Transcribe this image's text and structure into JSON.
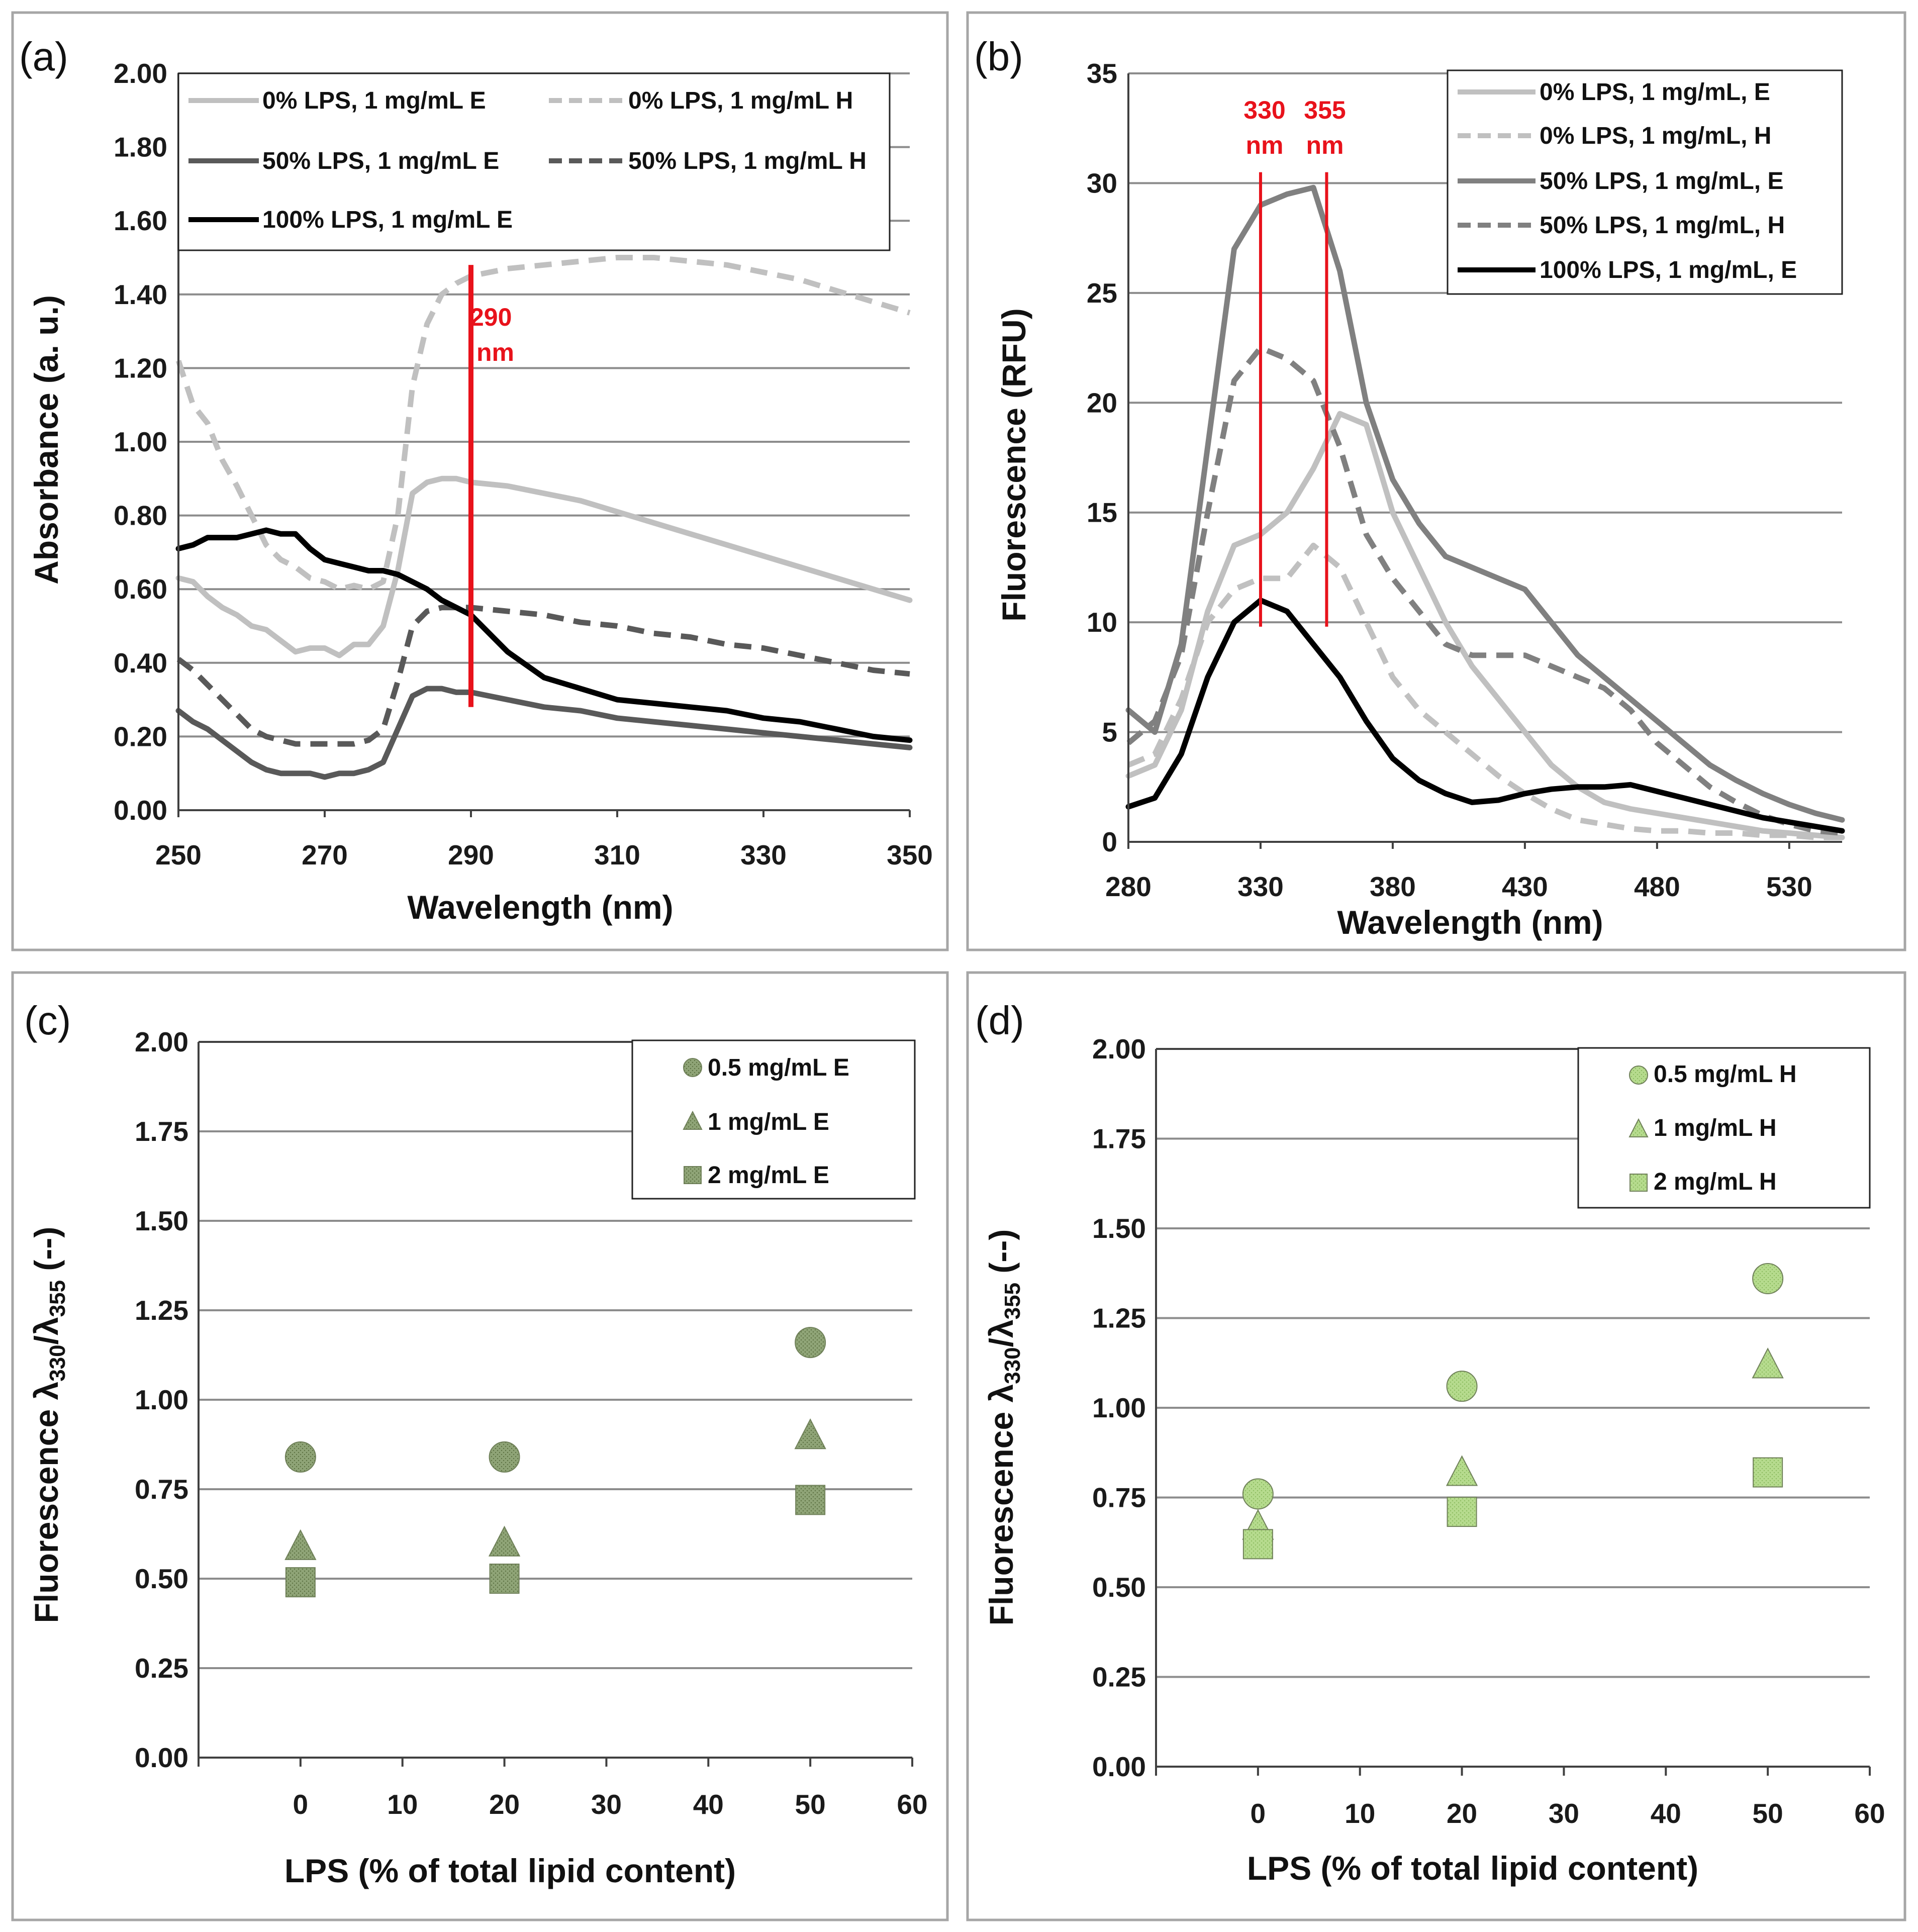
{
  "chart_data": [
    {
      "id": "a",
      "panel_label": "(a)",
      "type": "line",
      "xlabel": "Wavelength (nm)",
      "ylabel": "Absorbance (a. u.)",
      "xlim": [
        250,
        350
      ],
      "ylim": [
        0,
        2
      ],
      "xticks": [
        "250",
        "270",
        "290",
        "310",
        "330",
        "350"
      ],
      "yticks": [
        "0.00",
        "0.20",
        "0.40",
        "0.60",
        "0.80",
        "1.00",
        "1.20",
        "1.40",
        "1.60",
        "1.80",
        "2.00"
      ],
      "vlines": [
        {
          "x": 290,
          "y0": 0.28,
          "y1": 1.48
        }
      ],
      "annotations": [
        {
          "line1": "290",
          "line2": "nm"
        }
      ],
      "series": [
        {
          "name": "0% LPS, 1 mg/mL E",
          "color": "#c0c0c0",
          "dash": false,
          "x": [
            250,
            252,
            254,
            256,
            258,
            260,
            262,
            264,
            266,
            268,
            270,
            272,
            274,
            276,
            278,
            280,
            282,
            284,
            286,
            288,
            290,
            295,
            300,
            305,
            310,
            315,
            320,
            325,
            330,
            335,
            340,
            345,
            350
          ],
          "y": [
            0.63,
            0.62,
            0.58,
            0.55,
            0.53,
            0.5,
            0.49,
            0.46,
            0.43,
            0.44,
            0.44,
            0.42,
            0.45,
            0.45,
            0.5,
            0.65,
            0.86,
            0.89,
            0.9,
            0.9,
            0.89,
            0.88,
            0.86,
            0.84,
            0.81,
            0.78,
            0.75,
            0.72,
            0.69,
            0.66,
            0.63,
            0.6,
            0.57
          ]
        },
        {
          "name": "0% LPS, 1 mg/mL  H",
          "color": "#c0c0c0",
          "dash": true,
          "x": [
            250,
            252,
            254,
            256,
            258,
            260,
            262,
            264,
            266,
            268,
            270,
            272,
            274,
            276,
            278,
            280,
            282,
            284,
            286,
            288,
            290,
            295,
            300,
            305,
            310,
            315,
            320,
            325,
            330,
            335,
            340,
            345,
            350
          ],
          "y": [
            1.22,
            1.1,
            1.05,
            0.95,
            0.88,
            0.8,
            0.72,
            0.68,
            0.66,
            0.63,
            0.62,
            0.6,
            0.61,
            0.6,
            0.62,
            0.8,
            1.15,
            1.32,
            1.4,
            1.43,
            1.45,
            1.47,
            1.48,
            1.49,
            1.5,
            1.5,
            1.49,
            1.48,
            1.46,
            1.44,
            1.41,
            1.38,
            1.35
          ]
        },
        {
          "name": "50% LPS, 1 mg/mL E",
          "color": "#595959",
          "dash": false,
          "x": [
            250,
            252,
            254,
            256,
            258,
            260,
            262,
            264,
            266,
            268,
            270,
            272,
            274,
            276,
            278,
            280,
            282,
            284,
            286,
            288,
            290,
            295,
            300,
            305,
            310,
            315,
            320,
            325,
            330,
            335,
            340,
            345,
            350
          ],
          "y": [
            0.27,
            0.24,
            0.22,
            0.19,
            0.16,
            0.13,
            0.11,
            0.1,
            0.1,
            0.1,
            0.09,
            0.1,
            0.1,
            0.11,
            0.13,
            0.22,
            0.31,
            0.33,
            0.33,
            0.32,
            0.32,
            0.3,
            0.28,
            0.27,
            0.25,
            0.24,
            0.23,
            0.22,
            0.21,
            0.2,
            0.19,
            0.18,
            0.17
          ]
        },
        {
          "name": "50% LPS, 1 mg/mL H",
          "color": "#595959",
          "dash": true,
          "x": [
            250,
            252,
            254,
            256,
            258,
            260,
            262,
            264,
            266,
            268,
            270,
            272,
            274,
            276,
            278,
            280,
            282,
            284,
            286,
            288,
            290,
            295,
            300,
            305,
            310,
            315,
            320,
            325,
            330,
            335,
            340,
            345,
            350
          ],
          "y": [
            0.41,
            0.38,
            0.34,
            0.3,
            0.26,
            0.22,
            0.2,
            0.19,
            0.18,
            0.18,
            0.18,
            0.18,
            0.18,
            0.19,
            0.22,
            0.35,
            0.5,
            0.54,
            0.55,
            0.55,
            0.55,
            0.54,
            0.53,
            0.51,
            0.5,
            0.48,
            0.47,
            0.45,
            0.44,
            0.42,
            0.4,
            0.38,
            0.37
          ]
        },
        {
          "name": "100% LPS, 1 mg/mL E",
          "color": "#000000",
          "dash": false,
          "x": [
            250,
            252,
            254,
            256,
            258,
            260,
            262,
            264,
            266,
            268,
            270,
            272,
            274,
            276,
            278,
            280,
            282,
            284,
            286,
            288,
            290,
            295,
            300,
            305,
            310,
            315,
            320,
            325,
            330,
            335,
            340,
            345,
            350
          ],
          "y": [
            0.71,
            0.72,
            0.74,
            0.74,
            0.74,
            0.75,
            0.76,
            0.75,
            0.75,
            0.71,
            0.68,
            0.67,
            0.66,
            0.65,
            0.65,
            0.64,
            0.62,
            0.6,
            0.57,
            0.55,
            0.53,
            0.43,
            0.36,
            0.33,
            0.3,
            0.29,
            0.28,
            0.27,
            0.25,
            0.24,
            0.22,
            0.2,
            0.19
          ]
        }
      ]
    },
    {
      "id": "b",
      "panel_label": "(b)",
      "type": "line",
      "xlabel": "Wavelength (nm)",
      "ylabel": "Fluorescence (RFU)",
      "xlim": [
        280,
        550
      ],
      "ylim": [
        0,
        35
      ],
      "xticks": [
        "280",
        "330",
        "380",
        "430",
        "480",
        "530"
      ],
      "yticks": [
        "0",
        "5",
        "10",
        "15",
        "20",
        "25",
        "30",
        "35"
      ],
      "vlines": [
        {
          "x": 330,
          "y0": 9.8,
          "y1": 30.5
        },
        {
          "x": 355,
          "y0": 9.8,
          "y1": 30.5
        }
      ],
      "annotations": [
        {
          "line1": "330",
          "line2": "nm"
        },
        {
          "line1": "355",
          "line2": "nm"
        }
      ],
      "series": [
        {
          "name": "0% LPS, 1 mg/mL, E",
          "color": "#c0c0c0",
          "dash": false,
          "x": [
            280,
            290,
            300,
            310,
            320,
            330,
            340,
            350,
            360,
            370,
            380,
            390,
            400,
            410,
            420,
            430,
            440,
            450,
            460,
            470,
            480,
            490,
            500,
            510,
            520,
            530,
            540,
            550
          ],
          "y": [
            3.0,
            3.5,
            6.0,
            10.5,
            13.5,
            14.0,
            15.0,
            17.0,
            19.5,
            19.0,
            15.0,
            12.5,
            10.0,
            8.0,
            6.5,
            5.0,
            3.5,
            2.5,
            1.8,
            1.5,
            1.3,
            1.1,
            0.9,
            0.7,
            0.5,
            0.4,
            0.3,
            0.2
          ]
        },
        {
          "name": "0% LPS, 1 mg/mL, H",
          "color": "#c0c0c0",
          "dash": true,
          "x": [
            280,
            290,
            300,
            310,
            320,
            330,
            340,
            350,
            360,
            370,
            380,
            390,
            400,
            410,
            420,
            430,
            440,
            450,
            460,
            470,
            480,
            490,
            500,
            510,
            520,
            530,
            540,
            550
          ],
          "y": [
            3.5,
            4.0,
            6.5,
            10.0,
            11.5,
            12.0,
            12.0,
            13.5,
            12.5,
            10.0,
            7.5,
            6.0,
            5.0,
            4.0,
            3.0,
            2.2,
            1.5,
            1.0,
            0.8,
            0.6,
            0.5,
            0.5,
            0.4,
            0.4,
            0.3,
            0.3,
            0.2,
            0.2
          ]
        },
        {
          "name": "50% LPS, 1 mg/mL, E",
          "color": "#808080",
          "dash": false,
          "x": [
            280,
            290,
            300,
            310,
            320,
            330,
            340,
            350,
            360,
            370,
            380,
            390,
            400,
            410,
            420,
            430,
            440,
            450,
            460,
            470,
            480,
            490,
            500,
            510,
            520,
            530,
            540,
            550
          ],
          "y": [
            6.0,
            5.0,
            9.0,
            18.0,
            27.0,
            29.0,
            29.5,
            29.8,
            26.0,
            20.0,
            16.5,
            14.5,
            13.0,
            12.5,
            12.0,
            11.5,
            10.0,
            8.5,
            7.5,
            6.5,
            5.5,
            4.5,
            3.5,
            2.8,
            2.2,
            1.7,
            1.3,
            1.0
          ]
        },
        {
          "name": "50% LPS, 1 mg/mL, H",
          "color": "#808080",
          "dash": true,
          "x": [
            280,
            290,
            300,
            310,
            320,
            330,
            340,
            350,
            360,
            370,
            380,
            390,
            400,
            410,
            420,
            430,
            440,
            450,
            460,
            470,
            480,
            490,
            500,
            510,
            520,
            530,
            540,
            550
          ],
          "y": [
            4.5,
            5.5,
            8.5,
            15.0,
            21.0,
            22.5,
            22.0,
            21.0,
            18.0,
            14.0,
            12.0,
            10.5,
            9.0,
            8.5,
            8.5,
            8.5,
            8.0,
            7.5,
            7.0,
            6.0,
            4.5,
            3.5,
            2.5,
            1.8,
            1.2,
            0.8,
            0.5,
            0.4
          ]
        },
        {
          "name": "100% LPS, 1 mg/mL, E",
          "color": "#000000",
          "dash": false,
          "x": [
            280,
            290,
            300,
            310,
            320,
            330,
            340,
            350,
            360,
            370,
            380,
            390,
            400,
            410,
            420,
            430,
            440,
            450,
            460,
            470,
            480,
            490,
            500,
            510,
            520,
            530,
            540,
            550
          ],
          "y": [
            1.6,
            2.0,
            4.0,
            7.5,
            10.0,
            11.0,
            10.5,
            9.0,
            7.5,
            5.5,
            3.8,
            2.8,
            2.2,
            1.8,
            1.9,
            2.2,
            2.4,
            2.5,
            2.5,
            2.6,
            2.3,
            2.0,
            1.7,
            1.4,
            1.1,
            0.9,
            0.7,
            0.5
          ]
        }
      ]
    },
    {
      "id": "c",
      "panel_label": "(c)",
      "type": "scatter",
      "xlabel": "LPS  (% of total lipid content)",
      "ylabel_main": "Fluorescence λ",
      "ylabel_sub1": "330",
      "ylabel_sep": "/λ",
      "ylabel_sub2": "355",
      "ylabel_end": " (--)",
      "xlim": [
        -10,
        60
      ],
      "ylim": [
        0,
        2
      ],
      "xticks": [
        "0",
        "10",
        "20",
        "30",
        "40",
        "50",
        "60"
      ],
      "yticks": [
        "0.00",
        "0.25",
        "0.50",
        "0.75",
        "1.00",
        "1.25",
        "1.50",
        "1.75",
        "2.00"
      ],
      "color": "#8fa477",
      "series": [
        {
          "name": "0.5 mg/mL E",
          "marker": "circle",
          "x": [
            0,
            20,
            50
          ],
          "y": [
            0.84,
            0.84,
            1.16
          ]
        },
        {
          "name": "1 mg/mL E",
          "marker": "triangle",
          "x": [
            0,
            20,
            50
          ],
          "y": [
            0.59,
            0.6,
            0.9
          ]
        },
        {
          "name": "2 mg/mL E",
          "marker": "square",
          "x": [
            0,
            20,
            50
          ],
          "y": [
            0.49,
            0.5,
            0.72
          ]
        }
      ]
    },
    {
      "id": "d",
      "panel_label": "(d)",
      "type": "scatter",
      "xlabel": "LPS (% of total lipid content)",
      "ylabel_main": "Fluorescence λ",
      "ylabel_sub1": "330",
      "ylabel_sep": "/λ",
      "ylabel_sub2": "355",
      "ylabel_end": " (--)",
      "xlim": [
        -10,
        60
      ],
      "ylim": [
        0,
        2
      ],
      "xticks": [
        "0",
        "10",
        "20",
        "30",
        "40",
        "50",
        "60"
      ],
      "yticks": [
        "0.00",
        "0.25",
        "0.50",
        "0.75",
        "1.00",
        "1.25",
        "1.50",
        "1.75",
        "2.00"
      ],
      "color": "#b6db8e",
      "series": [
        {
          "name": "0.5 mg/mL H",
          "marker": "circle",
          "x": [
            0,
            20,
            50
          ],
          "y": [
            0.76,
            1.06,
            1.36
          ]
        },
        {
          "name": "1 mg/mL H",
          "marker": "triangle",
          "x": [
            0,
            20,
            50
          ],
          "y": [
            0.67,
            0.82,
            1.12
          ]
        },
        {
          "name": "2 mg/mL H",
          "marker": "square",
          "x": [
            0,
            20,
            50
          ],
          "y": [
            0.62,
            0.71,
            0.82
          ]
        }
      ]
    }
  ]
}
